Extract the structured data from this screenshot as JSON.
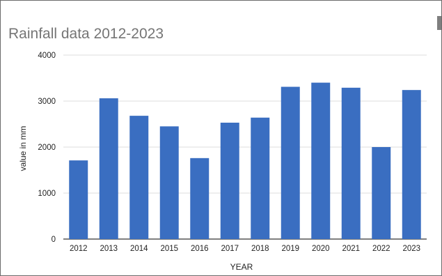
{
  "chart_data": {
    "type": "bar",
    "title": "Rainfall data 2012-2023",
    "xlabel": "YEAR",
    "ylabel": "value in mm",
    "categories": [
      "2012",
      "2013",
      "2014",
      "2015",
      "2016",
      "2017",
      "2018",
      "2019",
      "2020",
      "2021",
      "2022",
      "2023"
    ],
    "values": [
      1710,
      3060,
      2680,
      2450,
      1760,
      2530,
      2640,
      3310,
      3400,
      3290,
      2000,
      3240
    ],
    "ylim": [
      0,
      4000
    ],
    "yticks": [
      "0",
      "1000",
      "2000",
      "3000",
      "4000"
    ],
    "grid": true,
    "legend": "none",
    "bar_color": "#3a6ec1"
  }
}
